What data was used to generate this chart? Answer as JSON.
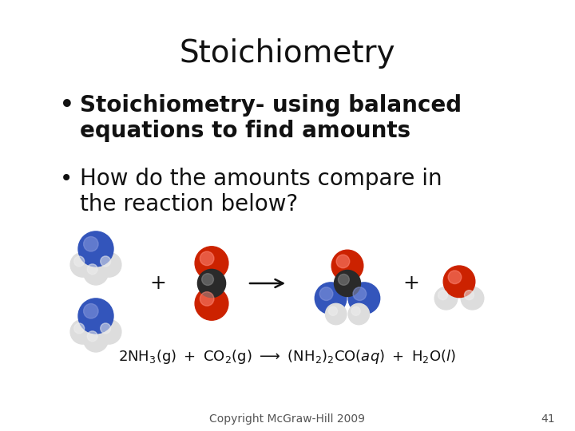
{
  "title": "Stoichiometry",
  "bullet1": "Stoichiometry- using balanced\nequations to find amounts",
  "bullet2": "How do the amounts compare in\nthe reaction below?",
  "copyright": "Copyright McGraw-Hill 2009",
  "page_num": "41",
  "bg_color": "#ffffff",
  "title_fontsize": 28,
  "bullet_fontsize": 20,
  "eq_fontsize": 13,
  "footer_fontsize": 10,
  "blue_dark": "#3355bb",
  "blue_light": "#8899dd",
  "red_dark": "#cc2200",
  "red_light": "#ff8877",
  "gray_dark": "#2a2a2a",
  "gray_mid": "#555555",
  "gray_light": "#888888",
  "white_dark": "#dddddd",
  "white_mid": "#eeeeee"
}
